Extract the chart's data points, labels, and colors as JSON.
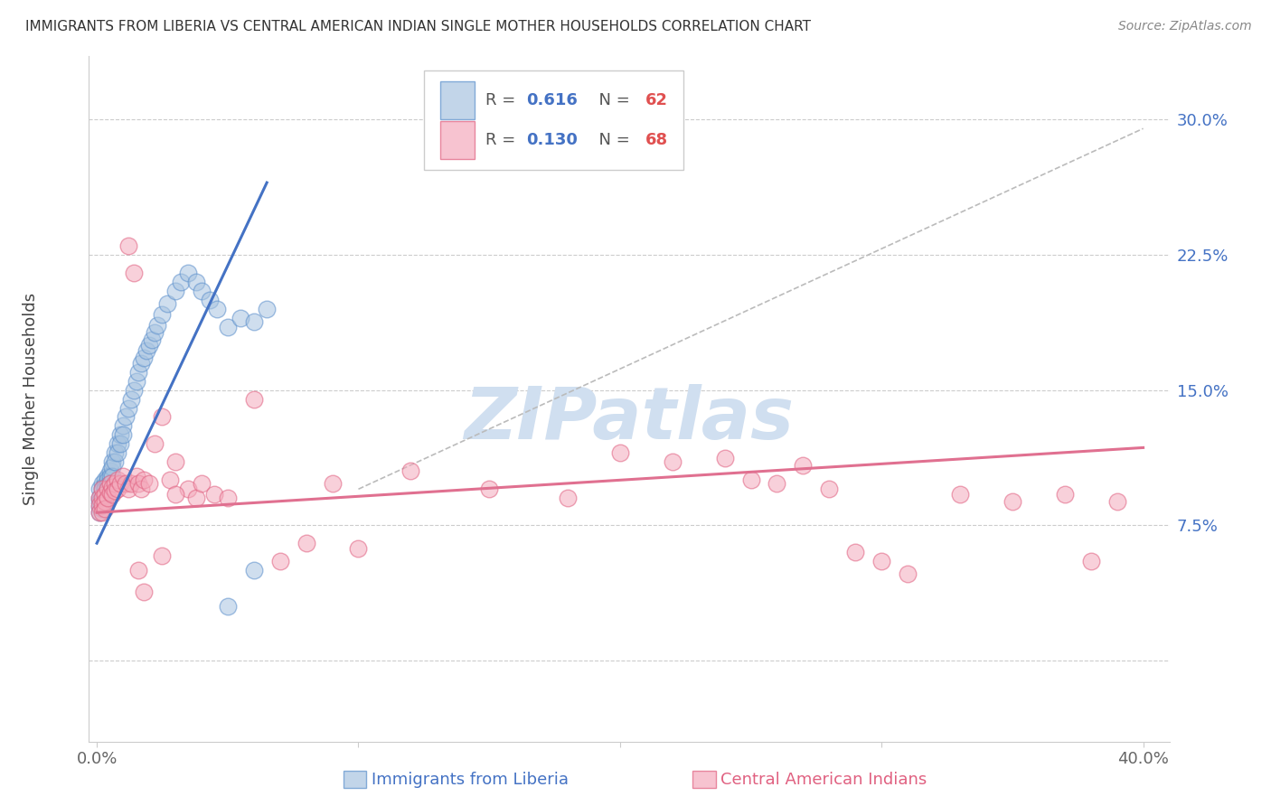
{
  "title": "IMMIGRANTS FROM LIBERIA VS CENTRAL AMERICAN INDIAN SINGLE MOTHER HOUSEHOLDS CORRELATION CHART",
  "source": "Source: ZipAtlas.com",
  "ylabel": "Single Mother Households",
  "liberia_color": "#A8C4E0",
  "liberia_edge_color": "#5B8FCC",
  "ca_color": "#F4AABC",
  "ca_edge_color": "#E06080",
  "liberia_line_color": "#4472C4",
  "ca_line_color": "#E07090",
  "diag_color": "#BBBBBB",
  "watermark_color": "#D0DFF0",
  "background_color": "#FFFFFF",
  "grid_color": "#CCCCCC",
  "ytick_color": "#4472C4",
  "xtick_color": "#666666",
  "legend_R_color": "#4472C4",
  "legend_N_color": "#E05050",
  "xlim": [
    -0.003,
    0.41
  ],
  "ylim": [
    -0.045,
    0.335
  ],
  "yticks": [
    0.0,
    0.075,
    0.15,
    0.225,
    0.3
  ],
  "ytick_labels": [
    "",
    "7.5%",
    "15.0%",
    "22.5%",
    "30.0%"
  ],
  "xticks": [
    0.0,
    0.1,
    0.2,
    0.3,
    0.4
  ],
  "xtick_labels": [
    "0.0%",
    "",
    "",
    "",
    "40.0%"
  ],
  "liberia_R": 0.616,
  "liberia_N": 62,
  "ca_R": 0.13,
  "ca_N": 68,
  "liberia_line_x": [
    0.0,
    0.065
  ],
  "liberia_line_y": [
    0.065,
    0.265
  ],
  "ca_line_x": [
    0.0,
    0.4
  ],
  "ca_line_y": [
    0.082,
    0.118
  ],
  "diag_line_x": [
    0.1,
    0.4
  ],
  "diag_line_y": [
    0.095,
    0.295
  ],
  "liberia_x": [
    0.001,
    0.001,
    0.001,
    0.001,
    0.001,
    0.002,
    0.002,
    0.002,
    0.002,
    0.002,
    0.002,
    0.003,
    0.003,
    0.003,
    0.003,
    0.003,
    0.004,
    0.004,
    0.004,
    0.004,
    0.005,
    0.005,
    0.005,
    0.006,
    0.006,
    0.006,
    0.007,
    0.007,
    0.008,
    0.008,
    0.009,
    0.009,
    0.01,
    0.01,
    0.011,
    0.012,
    0.013,
    0.014,
    0.015,
    0.016,
    0.017,
    0.018,
    0.019,
    0.02,
    0.021,
    0.022,
    0.023,
    0.025,
    0.027,
    0.03,
    0.032,
    0.035,
    0.038,
    0.04,
    0.043,
    0.046,
    0.05,
    0.055,
    0.06,
    0.065,
    0.06,
    0.05
  ],
  "liberia_y": [
    0.095,
    0.09,
    0.088,
    0.085,
    0.082,
    0.098,
    0.095,
    0.09,
    0.088,
    0.086,
    0.084,
    0.1,
    0.097,
    0.095,
    0.092,
    0.088,
    0.102,
    0.1,
    0.097,
    0.095,
    0.105,
    0.102,
    0.098,
    0.11,
    0.107,
    0.102,
    0.115,
    0.11,
    0.12,
    0.115,
    0.125,
    0.12,
    0.13,
    0.125,
    0.135,
    0.14,
    0.145,
    0.15,
    0.155,
    0.16,
    0.165,
    0.168,
    0.172,
    0.175,
    0.178,
    0.182,
    0.186,
    0.192,
    0.198,
    0.205,
    0.21,
    0.215,
    0.21,
    0.205,
    0.2,
    0.195,
    0.185,
    0.19,
    0.188,
    0.195,
    0.05,
    0.03
  ],
  "ca_x": [
    0.001,
    0.001,
    0.001,
    0.002,
    0.002,
    0.002,
    0.002,
    0.003,
    0.003,
    0.003,
    0.004,
    0.004,
    0.005,
    0.005,
    0.006,
    0.006,
    0.007,
    0.007,
    0.008,
    0.008,
    0.009,
    0.01,
    0.011,
    0.012,
    0.013,
    0.015,
    0.016,
    0.017,
    0.018,
    0.02,
    0.022,
    0.025,
    0.028,
    0.03,
    0.035,
    0.038,
    0.04,
    0.045,
    0.05,
    0.06,
    0.07,
    0.08,
    0.09,
    0.1,
    0.12,
    0.15,
    0.18,
    0.2,
    0.22,
    0.24,
    0.25,
    0.26,
    0.27,
    0.28,
    0.29,
    0.3,
    0.31,
    0.33,
    0.35,
    0.37,
    0.38,
    0.39,
    0.025,
    0.03,
    0.012,
    0.014,
    0.016,
    0.018
  ],
  "ca_y": [
    0.09,
    0.086,
    0.082,
    0.095,
    0.09,
    0.086,
    0.082,
    0.092,
    0.088,
    0.084,
    0.095,
    0.09,
    0.098,
    0.093,
    0.096,
    0.092,
    0.098,
    0.094,
    0.1,
    0.095,
    0.098,
    0.102,
    0.098,
    0.095,
    0.098,
    0.102,
    0.098,
    0.095,
    0.1,
    0.098,
    0.12,
    0.135,
    0.1,
    0.11,
    0.095,
    0.09,
    0.098,
    0.092,
    0.09,
    0.145,
    0.055,
    0.065,
    0.098,
    0.062,
    0.105,
    0.095,
    0.09,
    0.115,
    0.11,
    0.112,
    0.1,
    0.098,
    0.108,
    0.095,
    0.06,
    0.055,
    0.048,
    0.092,
    0.088,
    0.092,
    0.055,
    0.088,
    0.058,
    0.092,
    0.23,
    0.215,
    0.05,
    0.038
  ],
  "scatter_size": 180,
  "scatter_alpha": 0.55,
  "scatter_lw": 1.0
}
